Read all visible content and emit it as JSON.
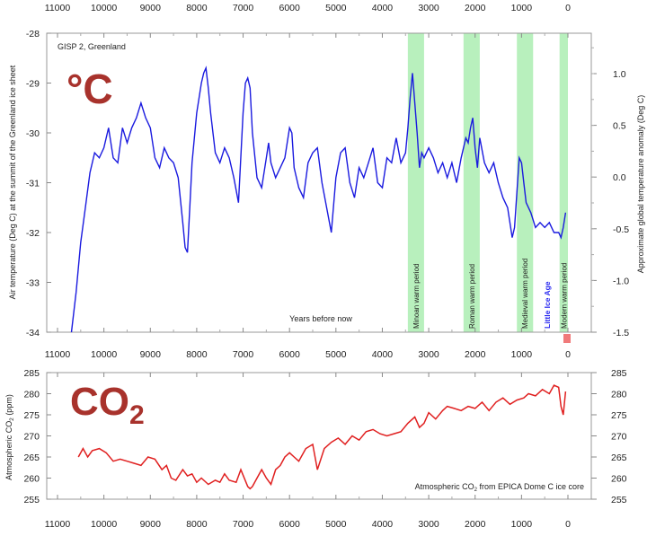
{
  "chart_data": [
    {
      "type": "line",
      "title": "GISP 2, Greenland",
      "big_label": "°C",
      "xlabel": "Years before now",
      "ylabel": "Air temperature (Deg C) at the summit of the Greenland ice sheet",
      "ylabel_right": "Approximate global temperature anomaly (Deg C)",
      "xlim": [
        11000,
        0
      ],
      "xlim_reversed": true,
      "ylim": [
        -34,
        -28
      ],
      "ylim_right": [
        -1.5,
        1.5
      ],
      "x_ticks": [
        "11000",
        "10000",
        "9000",
        "8000",
        "7000",
        "6000",
        "5000",
        "4000",
        "3000",
        "2000",
        "1000",
        "0"
      ],
      "y_ticks": [
        "-28",
        "-29",
        "-30",
        "-31",
        "-32",
        "-33",
        "-34"
      ],
      "y_ticks_right": [
        "1.0",
        "0.5",
        "0.0",
        "-0.5",
        "-1.0",
        "-1.5"
      ],
      "line_color": "#1a1adf",
      "band_color": "#b8f0bd",
      "periods": [
        {
          "name": "Minoan warm period",
          "start": 3450,
          "end": 3100
        },
        {
          "name": "Roman warm period",
          "start": 2250,
          "end": 1900
        },
        {
          "name": "Medieval warm period",
          "start": 1100,
          "end": 750
        },
        {
          "name": "Little Ice Age",
          "start": 700,
          "end": 200,
          "band": false
        },
        {
          "name": "Modern warm period",
          "start": 180,
          "end": 0
        }
      ],
      "series": [
        {
          "x": [
            10700,
            10600,
            10500,
            10400,
            10300,
            10200,
            10100,
            10000,
            9900,
            9800,
            9700,
            9600,
            9500,
            9400,
            9300,
            9200,
            9100,
            9000,
            8900,
            8800,
            8700,
            8600,
            8500,
            8400,
            8300,
            8250,
            8200,
            8150,
            8100,
            8000,
            7900,
            7850,
            7800,
            7750,
            7700,
            7600,
            7500,
            7400,
            7300,
            7200,
            7100,
            7000,
            6950,
            6900,
            6850,
            6800,
            6700,
            6600,
            6500,
            6450,
            6400,
            6300,
            6200,
            6100,
            6000,
            5950,
            5900,
            5800,
            5700,
            5600,
            5500,
            5400,
            5300,
            5200,
            5100,
            5000,
            4900,
            4800,
            4700,
            4600,
            4500,
            4400,
            4300,
            4200,
            4100,
            4000,
            3900,
            3800,
            3700,
            3600,
            3500,
            3450,
            3400,
            3350,
            3300,
            3250,
            3200,
            3150,
            3100,
            3000,
            2900,
            2800,
            2700,
            2600,
            2500,
            2400,
            2300,
            2200,
            2150,
            2100,
            2050,
            2000,
            1950,
            1900,
            1800,
            1700,
            1600,
            1500,
            1400,
            1300,
            1200,
            1150,
            1100,
            1050,
            1000,
            950,
            900,
            800,
            700,
            600,
            500,
            400,
            300,
            200,
            150,
            100,
            50
          ],
          "y": [
            -34,
            -33.2,
            -32.2,
            -31.5,
            -30.8,
            -30.4,
            -30.5,
            -30.3,
            -29.9,
            -30.5,
            -30.6,
            -29.9,
            -30.2,
            -29.9,
            -29.7,
            -29.4,
            -29.7,
            -29.9,
            -30.5,
            -30.7,
            -30.3,
            -30.5,
            -30.6,
            -30.9,
            -31.8,
            -32.3,
            -32.4,
            -31.5,
            -30.6,
            -29.6,
            -29.0,
            -28.8,
            -28.7,
            -29.1,
            -29.6,
            -30.4,
            -30.6,
            -30.3,
            -30.5,
            -30.9,
            -31.4,
            -29.6,
            -29.0,
            -28.9,
            -29.1,
            -30.0,
            -30.9,
            -31.1,
            -30.5,
            -30.2,
            -30.6,
            -30.9,
            -30.7,
            -30.5,
            -29.9,
            -30.0,
            -30.7,
            -31.1,
            -31.3,
            -30.6,
            -30.4,
            -30.3,
            -31.0,
            -31.5,
            -32.0,
            -30.9,
            -30.4,
            -30.3,
            -31.0,
            -31.3,
            -30.7,
            -30.9,
            -30.6,
            -30.3,
            -31.0,
            -31.1,
            -30.5,
            -30.6,
            -30.1,
            -30.6,
            -30.4,
            -29.9,
            -29.3,
            -28.8,
            -29.4,
            -30.0,
            -30.7,
            -30.4,
            -30.5,
            -30.3,
            -30.5,
            -30.8,
            -30.6,
            -30.9,
            -30.6,
            -31.0,
            -30.5,
            -30.1,
            -30.2,
            -29.9,
            -29.7,
            -30.3,
            -30.7,
            -30.1,
            -30.6,
            -30.8,
            -30.6,
            -31.0,
            -31.3,
            -31.5,
            -32.1,
            -31.9,
            -31.2,
            -30.5,
            -30.6,
            -31.0,
            -31.4,
            -31.6,
            -31.9,
            -31.8,
            -31.9,
            -31.8,
            -32.0,
            -32.0,
            -32.1,
            -31.9,
            -31.6
          ]
        }
      ]
    },
    {
      "type": "line",
      "big_label_main": "CO",
      "big_label_sub": "2",
      "ylabel_main": "Atmospheric CO",
      "ylabel_sub": "2",
      "ylabel_end": " (ppm)",
      "caption_main": "Atmospheric CO",
      "caption_sub": "2",
      "caption_end": " from EPICA Dome C ice core",
      "xlim": [
        11000,
        0
      ],
      "xlim_reversed": true,
      "ylim": [
        255,
        285
      ],
      "x_ticks": [
        "11000",
        "10000",
        "9000",
        "8000",
        "7000",
        "6000",
        "5000",
        "4000",
        "3000",
        "2000",
        "1000",
        "0"
      ],
      "y_ticks": [
        "285",
        "280",
        "275",
        "270",
        "265",
        "260",
        "255"
      ],
      "line_color": "#e02020",
      "series": [
        {
          "x": [
            10550,
            10450,
            10350,
            10250,
            10100,
            9950,
            9800,
            9650,
            9500,
            9350,
            9200,
            9050,
            8900,
            8750,
            8650,
            8550,
            8450,
            8300,
            8200,
            8100,
            8000,
            7900,
            7750,
            7600,
            7500,
            7400,
            7300,
            7150,
            7050,
            6900,
            6850,
            6800,
            6700,
            6600,
            6500,
            6400,
            6300,
            6200,
            6100,
            6000,
            5900,
            5800,
            5650,
            5500,
            5400,
            5250,
            5100,
            4950,
            4800,
            4650,
            4500,
            4350,
            4200,
            4050,
            3900,
            3750,
            3600,
            3450,
            3300,
            3200,
            3100,
            3000,
            2850,
            2700,
            2600,
            2450,
            2300,
            2150,
            2000,
            1850,
            1700,
            1550,
            1400,
            1250,
            1100,
            950,
            850,
            700,
            550,
            400,
            300,
            200,
            150,
            100,
            50
          ],
          "y": [
            265,
            267,
            265,
            266.5,
            267,
            266,
            264,
            264.5,
            264,
            263.5,
            263,
            265,
            264.5,
            262,
            263,
            260,
            259.5,
            262,
            260.5,
            261,
            259,
            260,
            258.5,
            259.5,
            259,
            261,
            259.5,
            259,
            262,
            258,
            257.5,
            258,
            260,
            262,
            260,
            258.5,
            262,
            263,
            265,
            266,
            265,
            264,
            267,
            268,
            262,
            267,
            268.5,
            269.5,
            268,
            270,
            269,
            271,
            271.5,
            270.5,
            270,
            270.5,
            271,
            273,
            274.5,
            272,
            273,
            275.5,
            274,
            276,
            277,
            276.5,
            276,
            277,
            276.5,
            278,
            276,
            278,
            279,
            277.5,
            278.5,
            279,
            280,
            279.5,
            281,
            280,
            282,
            281.5,
            277,
            275,
            280.5
          ]
        }
      ]
    }
  ]
}
